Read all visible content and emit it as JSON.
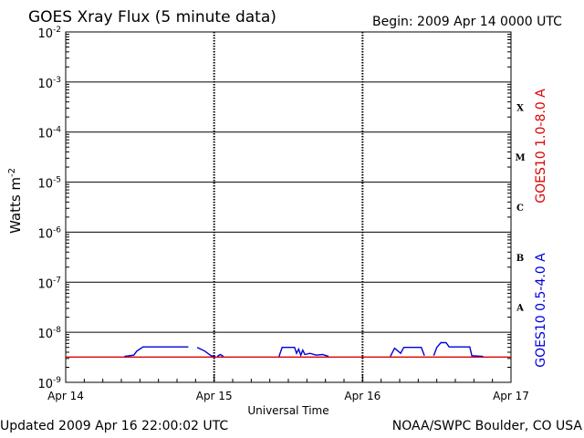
{
  "header": {
    "title": "GOES Xray Flux (5 minute data)",
    "begin": "Begin:  2009 Apr 14 0000 UTC"
  },
  "footer": {
    "updated": "Updated 2009 Apr 16 22:00:02 UTC",
    "credit": "NOAA/SWPC Boulder, CO USA"
  },
  "chart_data": {
    "type": "line",
    "title": "GOES Xray Flux (5 minute data)",
    "xlabel": "Universal Time",
    "ylabel": "Watts m",
    "ylabel_sup": "-2",
    "yscale": "log",
    "ylim": [
      1e-09,
      0.01
    ],
    "xlim": [
      "2009-04-14T00:00",
      "2009-04-17T00:00"
    ],
    "x_ticks": [
      "Apr 14",
      "Apr 15",
      "Apr 16",
      "Apr 17"
    ],
    "y_tick_exponents": [
      "-2",
      "-3",
      "-4",
      "-5",
      "-6",
      "-7",
      "-8",
      "-9"
    ],
    "flare_classes": [
      "X",
      "M",
      "C",
      "B",
      "A"
    ],
    "grid": true,
    "series": [
      {
        "name": "GOES10 1.0-8.0 A",
        "color": "#dd0000",
        "points": [
          [
            "2009-04-14T00:00",
            3.2e-09
          ],
          [
            "2009-04-14T19:50",
            3.2e-09
          ],
          [
            "2009-04-14T21:15",
            3.2e-09
          ],
          [
            "2009-04-17T00:00",
            3.2e-09
          ]
        ]
      },
      {
        "name": "GOES10 0.5-4.0 A",
        "color": "#0000dd",
        "segments": [
          [
            [
              "2009-04-14T09:30",
              3.3e-09
            ],
            [
              "2009-04-14T11:00",
              3.5e-09
            ],
            [
              "2009-04-14T11:30",
              4.2e-09
            ],
            [
              "2009-04-14T12:30",
              5.1e-09
            ],
            [
              "2009-04-14T19:50",
              5.1e-09
            ]
          ],
          [
            [
              "2009-04-14T21:15",
              5e-09
            ],
            [
              "2009-04-14T22:30",
              4.2e-09
            ],
            [
              "2009-04-14T23:30",
              3.4e-09
            ],
            [
              "2009-04-15T00:10",
              3.3e-09
            ]
          ],
          [
            [
              "2009-04-15T00:30",
              3.3e-09
            ],
            [
              "2009-04-15T01:00",
              3.6e-09
            ],
            [
              "2009-04-15T01:30",
              3.3e-09
            ]
          ],
          [
            [
              "2009-04-15T10:30",
              3.3e-09
            ],
            [
              "2009-04-15T11:00",
              5e-09
            ],
            [
              "2009-04-15T13:00",
              5e-09
            ],
            [
              "2009-04-15T13:20",
              3.8e-09
            ],
            [
              "2009-04-15T13:40",
              4.6e-09
            ],
            [
              "2009-04-15T14:00",
              3.5e-09
            ],
            [
              "2009-04-15T14:20",
              4.4e-09
            ],
            [
              "2009-04-15T14:40",
              3.6e-09
            ],
            [
              "2009-04-15T15:30",
              3.8e-09
            ],
            [
              "2009-04-15T16:30",
              3.5e-09
            ],
            [
              "2009-04-15T17:30",
              3.6e-09
            ],
            [
              "2009-04-15T18:30",
              3.3e-09
            ]
          ],
          [
            [
              "2009-04-16T04:30",
              3.3e-09
            ],
            [
              "2009-04-16T05:10",
              4.8e-09
            ],
            [
              "2009-04-16T06:10",
              3.8e-09
            ],
            [
              "2009-04-16T06:40",
              5e-09
            ],
            [
              "2009-04-16T09:30",
              5e-09
            ],
            [
              "2009-04-16T10:00",
              3.4e-09
            ]
          ],
          [
            [
              "2009-04-16T11:30",
              3.4e-09
            ],
            [
              "2009-04-16T12:00",
              5e-09
            ],
            [
              "2009-04-16T12:40",
              6.2e-09
            ],
            [
              "2009-04-16T13:30",
              6.2e-09
            ],
            [
              "2009-04-16T14:00",
              5.1e-09
            ],
            [
              "2009-04-16T17:20",
              5.1e-09
            ],
            [
              "2009-04-16T17:40",
              3.4e-09
            ],
            [
              "2009-04-16T19:30",
              3.3e-09
            ]
          ]
        ]
      }
    ]
  }
}
